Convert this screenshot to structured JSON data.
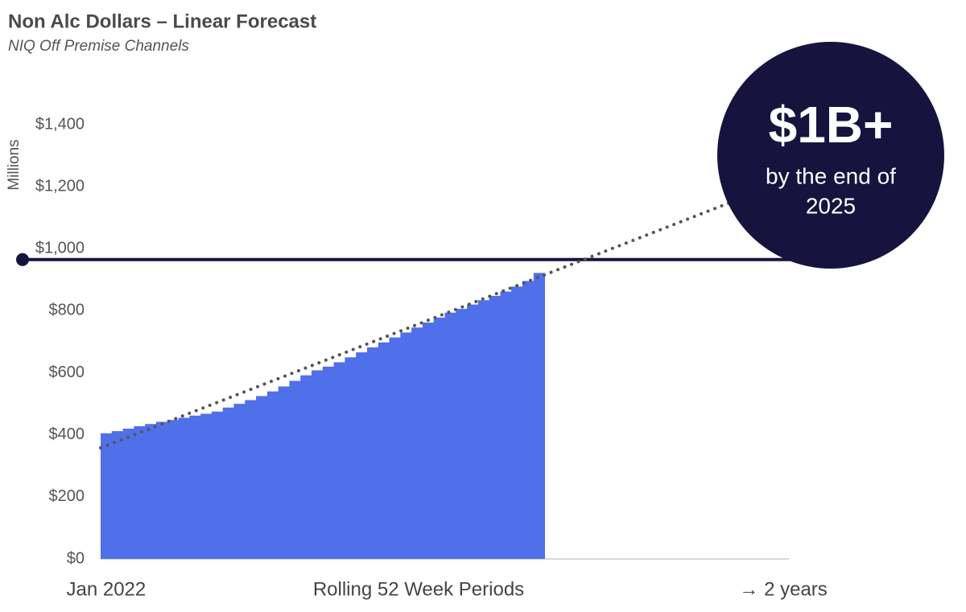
{
  "chart_data": {
    "type": "bar",
    "title": "Non Alc Dollars – Linear Forecast",
    "subtitle": "NIQ Off Premise Channels",
    "y_axis_label": "Millions",
    "x_axis_label": "Rolling 52 Week Periods",
    "categories": [
      "Jan 2022",
      null,
      null,
      null,
      null,
      null,
      null,
      null,
      null,
      null,
      null,
      null,
      null,
      null,
      null,
      null,
      null,
      null,
      null,
      null,
      null,
      null,
      null,
      null,
      null,
      null,
      null,
      null,
      null,
      null,
      null,
      null,
      null,
      null,
      null,
      null,
      null,
      null,
      null,
      null,
      null,
      null,
      null,
      null,
      null,
      null,
      null,
      null,
      null,
      null,
      null,
      null,
      null,
      null,
      null,
      null,
      null,
      null,
      null,
      null,
      null,
      "→ 2 years"
    ],
    "values": [
      405,
      412,
      420,
      428,
      435,
      442,
      448,
      455,
      462,
      468,
      475,
      488,
      500,
      512,
      525,
      540,
      556,
      574,
      592,
      608,
      620,
      634,
      650,
      666,
      682,
      698,
      714,
      730,
      746,
      762,
      778,
      794,
      806,
      820,
      834,
      848,
      862,
      878,
      896,
      922,
      null,
      null,
      null,
      null,
      null,
      null,
      null,
      null,
      null,
      null,
      null,
      null,
      null,
      null,
      null,
      null,
      null,
      null,
      null,
      null,
      null,
      null
    ],
    "color": "#5070ea",
    "ylim": [
      0,
      1400
    ],
    "yticks": [
      {
        "value": 0,
        "label": "$0"
      },
      {
        "value": 200,
        "label": "$200"
      },
      {
        "value": 400,
        "label": "$400"
      },
      {
        "value": 600,
        "label": "$600"
      },
      {
        "value": 800,
        "label": "$800"
      },
      {
        "value": 1000,
        "label": "$1,000"
      },
      {
        "value": 1200,
        "label": "$1,200"
      },
      {
        "value": 1400,
        "label": "$1,400"
      }
    ],
    "reference_line": {
      "value": 965,
      "color": "#16143f"
    },
    "trend": {
      "x": [
        0,
        57
      ],
      "values": [
        358,
        1160
      ],
      "color": "#555555"
    },
    "annotation": {
      "headline": "$1B+",
      "text": [
        "by the end of",
        "2025"
      ],
      "color": "#16143f"
    }
  }
}
